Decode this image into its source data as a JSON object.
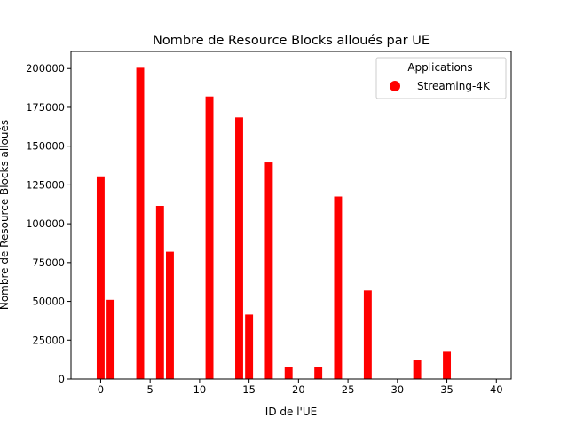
{
  "chart_data": {
    "type": "bar",
    "title": "Nombre de Resource Blocks alloués par UE",
    "xlabel": "ID de l'UE",
    "ylabel": "Nombre de Resource Blocks alloués",
    "xlim": [
      -3,
      41.5
    ],
    "ylim": [
      0,
      211000
    ],
    "xticks": [
      0,
      5,
      10,
      15,
      20,
      25,
      30,
      35,
      40
    ],
    "yticks": [
      0,
      25000,
      50000,
      75000,
      100000,
      125000,
      150000,
      175000,
      200000
    ],
    "grid": false,
    "bar_color": "#ff0000",
    "legend": {
      "title": "Applications",
      "placement": "top-right",
      "entries": [
        {
          "label": "Streaming-4K",
          "color": "#ff0000",
          "marker": "circle"
        }
      ]
    },
    "series": [
      {
        "x": [
          0,
          1,
          4,
          6,
          7,
          11,
          14,
          15,
          17,
          19,
          22,
          24,
          27,
          32,
          35
        ],
        "values": [
          130500,
          51000,
          200500,
          111500,
          82000,
          182000,
          168500,
          41500,
          139500,
          7500,
          8000,
          117500,
          57000,
          12000,
          17500
        ]
      }
    ]
  }
}
